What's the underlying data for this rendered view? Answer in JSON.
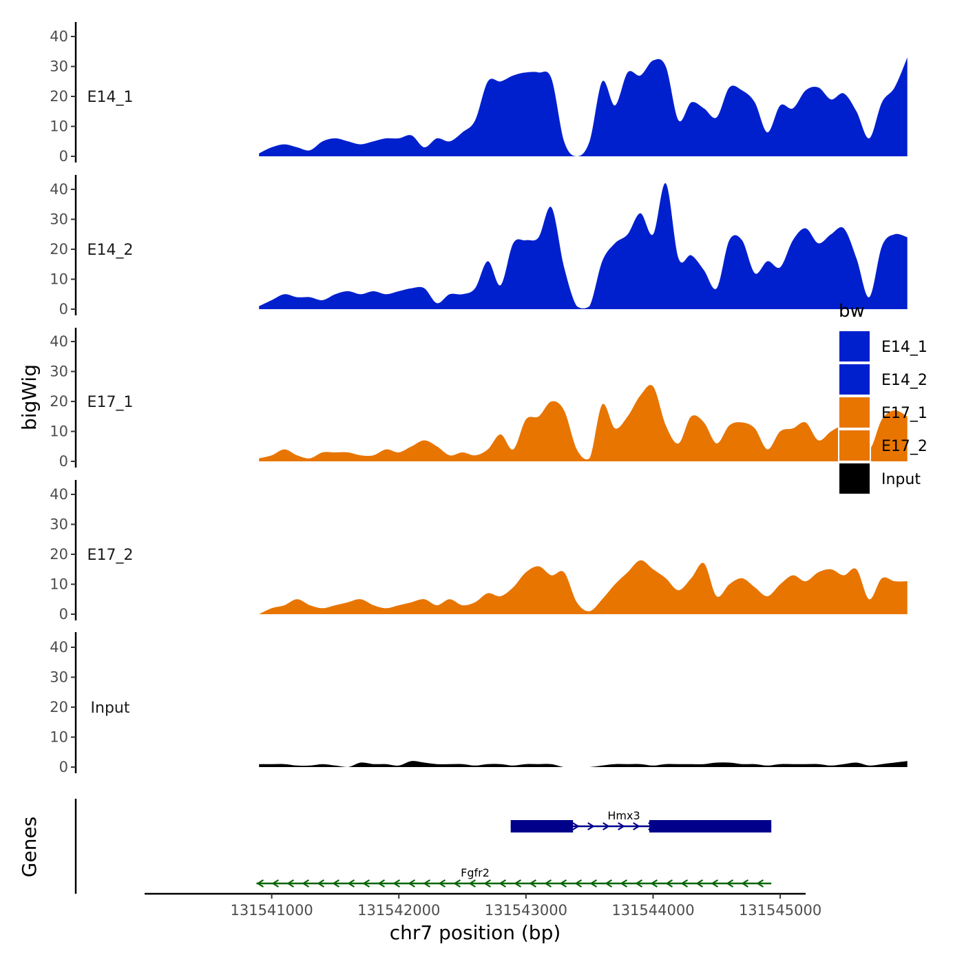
{
  "chart_data": {
    "type": "area",
    "ylabel": "bigWig",
    "xlabel": "chr7 position (bp)",
    "xlim": [
      131540000,
      131545200
    ],
    "x_ticks": [
      131541000,
      131542000,
      131543000,
      131544000,
      131545000
    ],
    "x_tick_labels": [
      "131541000",
      "131542000",
      "131543000",
      "131544000",
      "131545000"
    ],
    "ylim": [
      0,
      45
    ],
    "y_ticks": [
      0,
      10,
      20,
      30,
      40
    ],
    "y_tick_labels": [
      "0",
      "10",
      "20",
      "30",
      "40"
    ],
    "x_start": 131540900,
    "x_step": 100,
    "tracks": [
      {
        "name": "E14_1",
        "color": "#0020CE",
        "values": [
          1,
          3,
          4,
          3,
          2,
          5,
          6,
          5,
          4,
          5,
          6,
          6,
          7,
          3,
          6,
          5,
          8,
          12,
          25,
          25,
          27,
          28,
          28,
          26,
          5,
          0,
          5,
          25,
          17,
          28,
          27,
          32,
          30,
          12,
          18,
          16,
          13,
          23,
          22,
          18,
          8,
          17,
          16,
          22,
          23,
          19,
          21,
          15,
          6,
          18,
          23,
          33
        ]
      },
      {
        "name": "E14_2",
        "color": "#0020CE",
        "values": [
          1,
          3,
          5,
          4,
          4,
          3,
          5,
          6,
          5,
          6,
          5,
          6,
          7,
          7,
          2,
          5,
          5,
          7,
          16,
          8,
          22,
          23,
          24,
          34,
          14,
          1,
          1,
          16,
          22,
          25,
          32,
          25,
          42,
          17,
          18,
          13,
          7,
          23,
          23,
          12,
          16,
          14,
          23,
          27,
          22,
          25,
          27,
          17,
          4,
          21,
          25,
          24
        ]
      },
      {
        "name": "E17_1",
        "color": "#E87500",
        "values": [
          1,
          2,
          4,
          2,
          1,
          3,
          3,
          3,
          2,
          2,
          4,
          3,
          5,
          7,
          5,
          2,
          3,
          2,
          4,
          9,
          4,
          14,
          15,
          20,
          17,
          4,
          1,
          19,
          11,
          15,
          22,
          25,
          12,
          6,
          15,
          13,
          6,
          12,
          13,
          11,
          4,
          10,
          11,
          13,
          7,
          10,
          12,
          11,
          4,
          14,
          17,
          15
        ]
      },
      {
        "name": "E17_2",
        "color": "#E87500",
        "values": [
          0,
          2,
          3,
          5,
          3,
          2,
          3,
          4,
          5,
          3,
          2,
          3,
          4,
          5,
          3,
          5,
          3,
          4,
          7,
          6,
          9,
          14,
          16,
          13,
          14,
          4,
          1,
          5,
          10,
          14,
          18,
          15,
          12,
          8,
          12,
          17,
          6,
          10,
          12,
          9,
          6,
          10,
          13,
          11,
          14,
          15,
          13,
          15,
          5,
          12,
          11,
          11
        ]
      },
      {
        "name": "Input",
        "color": "#000000",
        "values": [
          1,
          1,
          1,
          0.5,
          0.5,
          1,
          0.5,
          0,
          1.5,
          1,
          1,
          0.5,
          2,
          1.5,
          1,
          1,
          1,
          0.5,
          1,
          1,
          0.5,
          1,
          1,
          1,
          0,
          0,
          0,
          0.5,
          1,
          1,
          1,
          0.5,
          1,
          1,
          1,
          1,
          1.5,
          1.5,
          1,
          1,
          0.5,
          1,
          1,
          1,
          1,
          0.5,
          1,
          1.5,
          0.5,
          1,
          1.5,
          2
        ]
      }
    ],
    "legend": {
      "title": "bw",
      "entries": [
        {
          "label": "E14_1",
          "color": "#0020CE"
        },
        {
          "label": "E14_2",
          "color": "#0020CE"
        },
        {
          "label": "E17_1",
          "color": "#E87500"
        },
        {
          "label": "E17_2",
          "color": "#E87500"
        },
        {
          "label": "Input",
          "color": "#000000"
        }
      ]
    },
    "genes_track_label": "Genes",
    "genes": [
      {
        "name": "Hmx3",
        "strand": "+",
        "color": "#00008B",
        "start": 131542880,
        "end": 131544930,
        "exons": [
          [
            131542880,
            131543370
          ],
          [
            131543970,
            131544930
          ]
        ]
      },
      {
        "name": "Fgfr2",
        "strand": "-",
        "color": "#006400",
        "start": 131540880,
        "end": 131544930,
        "exons": []
      }
    ]
  }
}
